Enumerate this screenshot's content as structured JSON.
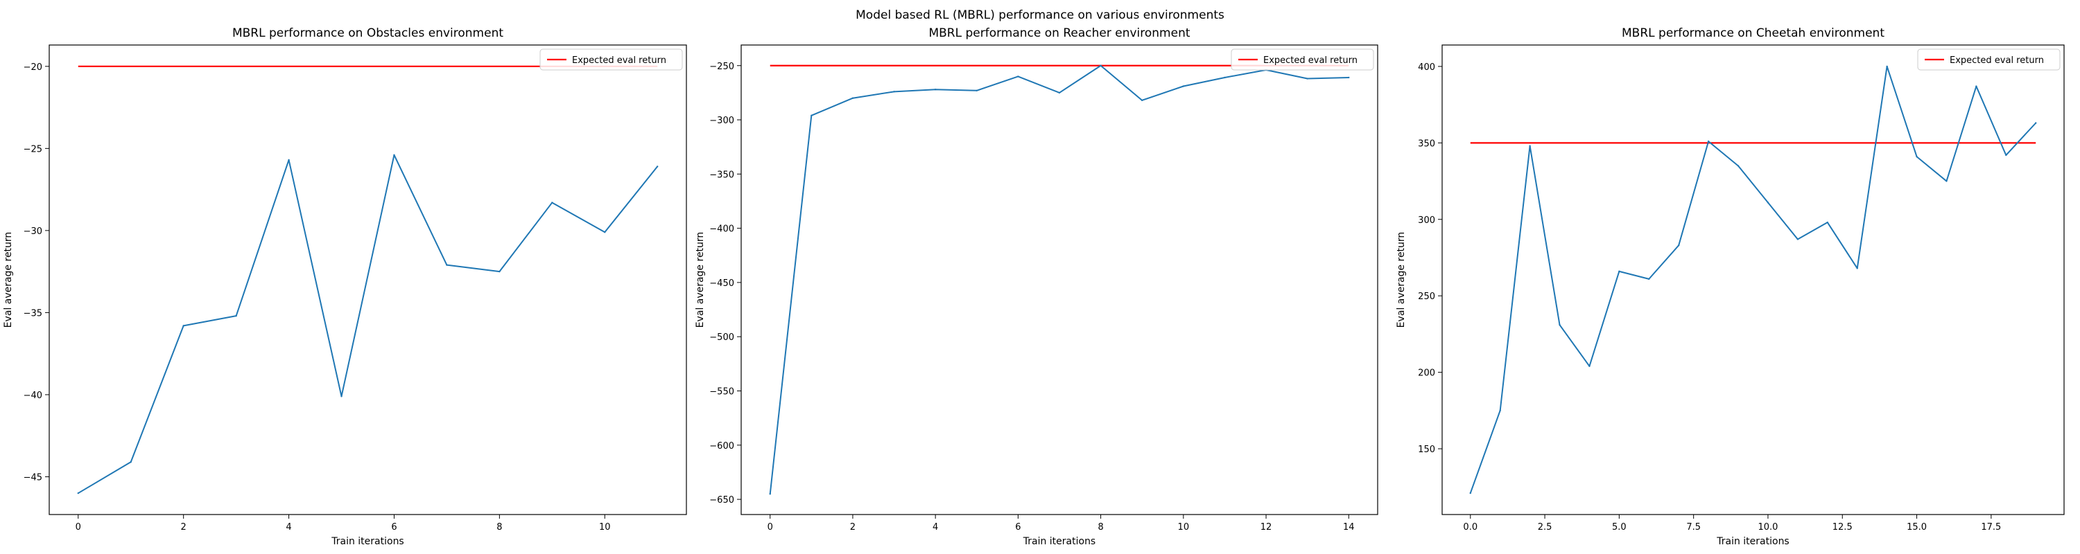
{
  "suptitle": "Model based RL (MBRL) performance on various environments",
  "colors": {
    "series": "#1f77b4",
    "reference": "#ff0000"
  },
  "chart_data": [
    {
      "type": "line",
      "title": "MBRL performance on Obstacles environment",
      "xlabel": "Train iterations",
      "ylabel": "Eval average return",
      "xlim": [
        -0.55,
        11.55
      ],
      "ylim": [
        -47.3,
        -18.7
      ],
      "xticks": [
        0,
        2,
        4,
        6,
        8,
        10
      ],
      "xtick_labels": [
        "0",
        "2",
        "4",
        "6",
        "8",
        "10"
      ],
      "yticks": [
        -45,
        -40,
        -35,
        -30,
        -25,
        -20
      ],
      "ytick_labels": [
        "−45",
        "−40",
        "−35",
        "−30",
        "−25",
        "−20"
      ],
      "legend": "top-right",
      "grid": false,
      "series": [
        {
          "values": [
            -46.0,
            -44.1,
            -35.8,
            -35.2,
            -25.7,
            -40.1,
            -25.4,
            -32.1,
            -32.5,
            -28.3,
            -30.1,
            -26.1
          ]
        }
      ],
      "reference": {
        "name": "Expected eval return",
        "value": -20
      }
    },
    {
      "type": "line",
      "title": "MBRL performance on Reacher environment",
      "xlabel": "Train iterations",
      "ylabel": "Eval average return",
      "xlim": [
        -0.7,
        14.7
      ],
      "ylim": [
        -664,
        -231
      ],
      "xticks": [
        0,
        2,
        4,
        6,
        8,
        10,
        12,
        14
      ],
      "xtick_labels": [
        "0",
        "2",
        "4",
        "6",
        "8",
        "10",
        "12",
        "14"
      ],
      "yticks": [
        -650,
        -600,
        -550,
        -500,
        -450,
        -400,
        -350,
        -300,
        -250
      ],
      "ytick_labels": [
        "−650",
        "−600",
        "−550",
        "−500",
        "−450",
        "−400",
        "−350",
        "−300",
        "−250"
      ],
      "legend": "top-right",
      "grid": false,
      "series": [
        {
          "values": [
            -645,
            -296,
            -280,
            -274,
            -272,
            -273,
            -260,
            -275,
            -250,
            -282,
            -269,
            -261,
            -254,
            -262,
            -261
          ]
        }
      ],
      "reference": {
        "name": "Expected eval return",
        "value": -250
      }
    },
    {
      "type": "line",
      "title": "MBRL performance on Cheetah environment",
      "xlabel": "Train iterations",
      "ylabel": "Eval average return",
      "xlim": [
        -0.95,
        19.95
      ],
      "ylim": [
        107,
        414
      ],
      "xticks": [
        0,
        2.5,
        5,
        7.5,
        10,
        12.5,
        15,
        17.5
      ],
      "xtick_labels": [
        "0.0",
        "2.5",
        "5.0",
        "7.5",
        "10.0",
        "12.5",
        "15.0",
        "17.5"
      ],
      "yticks": [
        150,
        200,
        250,
        300,
        350,
        400
      ],
      "ytick_labels": [
        "150",
        "200",
        "250",
        "300",
        "350",
        "400"
      ],
      "legend": "top-right",
      "grid": false,
      "series": [
        {
          "values": [
            121,
            175,
            348,
            231,
            204,
            266,
            261,
            283,
            351,
            335,
            311,
            287,
            298,
            268,
            400,
            341,
            325,
            387,
            342,
            363
          ]
        }
      ],
      "reference": {
        "name": "Expected eval return",
        "value": 350
      }
    }
  ]
}
